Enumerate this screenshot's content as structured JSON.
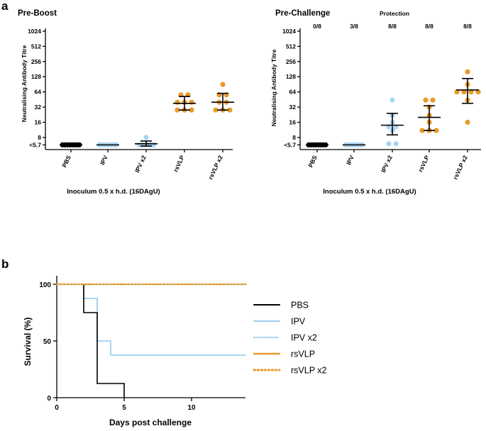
{
  "panel_labels": {
    "a": "a",
    "b": "b"
  },
  "colors": {
    "PBS": "#000000",
    "IPV": "#a9d4f0",
    "IPV x2": "#a9d4f0",
    "rsVLP": "#e89a2a",
    "rsVLP x2": "#e89a2a"
  },
  "chart_data": [
    {
      "type": "scatter",
      "title": "Pre-Boost",
      "ylabel": "Neutralising Antibody Titre",
      "xlabel": "Inoculum 0.5 x h.d. (16DAgU)",
      "yscale": "log2",
      "ylim": [
        4.6,
        1024
      ],
      "yticks": [
        {
          "value": 5.7,
          "label": "<5.7"
        },
        {
          "value": 8,
          "label": "8"
        },
        {
          "value": 16,
          "label": "16"
        },
        {
          "value": 32,
          "label": "32"
        },
        {
          "value": 64,
          "label": "64"
        },
        {
          "value": 128,
          "label": "128"
        },
        {
          "value": 256,
          "label": "256"
        },
        {
          "value": 512,
          "label": "512"
        },
        {
          "value": 1024,
          "label": "1024"
        }
      ],
      "categories": [
        "PBS",
        "IPV",
        "IPV x2",
        "rsVLP",
        "rsVLP x2"
      ],
      "series": [
        {
          "name": "PBS",
          "points": [
            5.7,
            5.7,
            5.7,
            5.7,
            5.7,
            5.7,
            5.7,
            5.7
          ],
          "mean": 5.7,
          "err_low": 5.7,
          "err_high": 5.7
        },
        {
          "name": "IPV",
          "points": [
            5.7,
            5.7,
            5.7,
            5.7,
            5.7,
            5.7,
            5.7,
            5.7
          ],
          "mean": 5.7,
          "err_low": 5.7,
          "err_high": 5.7
        },
        {
          "name": "IPV x2",
          "points": [
            5.7,
            5.7,
            5.7,
            5.7,
            5.7,
            5.7,
            5.7,
            8
          ],
          "mean": 6.0,
          "err_low": 5.4,
          "err_high": 6.8
        },
        {
          "name": "rsVLP",
          "points": [
            56,
            56,
            40,
            40,
            40,
            28,
            28,
            28
          ],
          "mean": 38,
          "err_low": 28,
          "err_high": 52
        },
        {
          "name": "rsVLP x2",
          "points": [
            90,
            56,
            56,
            40,
            40,
            28,
            28,
            28
          ],
          "mean": 40,
          "err_low": 28,
          "err_high": 60
        }
      ]
    },
    {
      "type": "scatter",
      "title": "Pre-Challenge",
      "protection_header": "Protection",
      "protection": [
        "0/8",
        "3/8",
        "8/8",
        "8/8",
        "8/8"
      ],
      "ylabel": "Neutralising Antibody Titre",
      "xlabel": "Inoculum 0.5 x h.d. (16DAgU)",
      "yscale": "log2",
      "ylim": [
        4.6,
        1024
      ],
      "yticks": [
        {
          "value": 5.7,
          "label": "<5.7"
        },
        {
          "value": 8,
          "label": "8"
        },
        {
          "value": 16,
          "label": "16"
        },
        {
          "value": 32,
          "label": "32"
        },
        {
          "value": 64,
          "label": "64"
        },
        {
          "value": 128,
          "label": "128"
        },
        {
          "value": 256,
          "label": "256"
        },
        {
          "value": 512,
          "label": "512"
        },
        {
          "value": 1024,
          "label": "1024"
        }
      ],
      "categories": [
        "PBS",
        "IPV",
        "IPV x2",
        "rsVLP",
        "rsVLP x2"
      ],
      "series": [
        {
          "name": "PBS",
          "points": [
            5.7,
            5.7,
            5.7,
            5.7,
            5.7,
            5.7,
            5.7,
            5.7
          ],
          "mean": 5.7,
          "err_low": 5.7,
          "err_high": 5.7
        },
        {
          "name": "IPV",
          "points": [
            5.7,
            5.7,
            5.7,
            5.7,
            5.7,
            5.7,
            5.7,
            5.7
          ],
          "mean": 5.7,
          "err_low": 5.7,
          "err_high": 5.7
        },
        {
          "name": "IPV x2",
          "points": [
            44,
            22,
            16,
            13,
            13,
            11,
            6,
            6
          ],
          "mean": 14,
          "err_low": 9,
          "err_high": 24
        },
        {
          "name": "rsVLP",
          "points": [
            44,
            44,
            32,
            22,
            16,
            11,
            11,
            11
          ],
          "mean": 20,
          "err_low": 11,
          "err_high": 34
        },
        {
          "name": "rsVLP x2",
          "points": [
            160,
            90,
            64,
            64,
            64,
            64,
            44,
            16
          ],
          "mean": 70,
          "err_low": 38,
          "err_high": 118
        }
      ]
    },
    {
      "type": "line",
      "subtype": "kaplan-meier",
      "xlabel": "Days post challenge",
      "ylabel": "Survival (%)",
      "xlim": [
        0,
        14
      ],
      "ylim": [
        0,
        100
      ],
      "xticks": [
        0,
        5,
        10
      ],
      "yticks": [
        0,
        50,
        100
      ],
      "series": [
        {
          "name": "PBS",
          "style": "solid",
          "x": [
            0,
            2,
            2,
            3,
            3,
            5,
            5
          ],
          "y": [
            100,
            100,
            75,
            75,
            12.5,
            12.5,
            0
          ]
        },
        {
          "name": "IPV",
          "style": "solid",
          "x": [
            0,
            2,
            2,
            3,
            3,
            4,
            4,
            14
          ],
          "y": [
            100,
            100,
            87.5,
            87.5,
            50,
            50,
            37.5,
            37.5
          ]
        },
        {
          "name": "IPV x2",
          "style": "dotted",
          "x": [
            0,
            14
          ],
          "y": [
            100,
            100
          ]
        },
        {
          "name": "rsVLP",
          "style": "solid",
          "x": [
            0,
            14
          ],
          "y": [
            100,
            100
          ]
        },
        {
          "name": "rsVLP x2",
          "style": "dotted",
          "x": [
            0,
            14
          ],
          "y": [
            100,
            100
          ]
        }
      ],
      "legend": [
        "PBS",
        "IPV",
        "IPV x2",
        "rsVLP",
        "rsVLP x2"
      ]
    }
  ]
}
